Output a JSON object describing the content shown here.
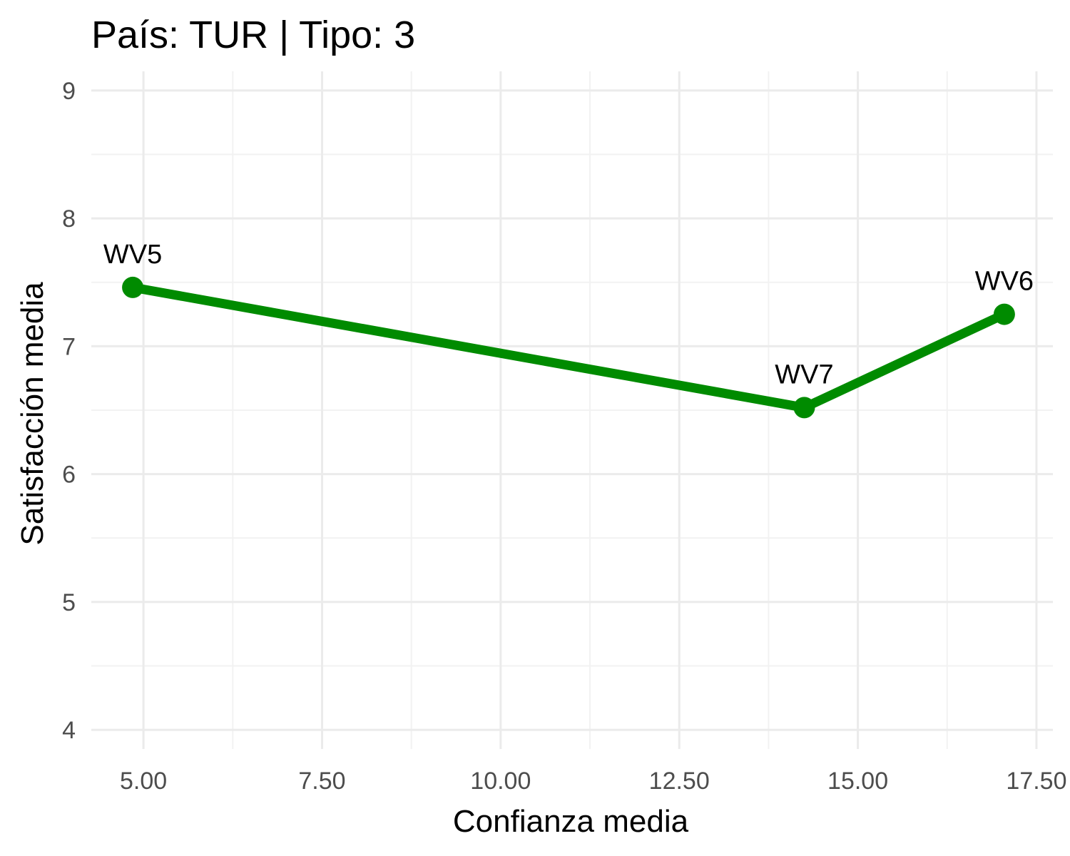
{
  "chart_data": {
    "type": "line",
    "title": "País: TUR | Tipo: 3",
    "xlabel": "Confianza media",
    "ylabel": "Satisfacción media",
    "xlim": [
      4.27,
      17.73
    ],
    "ylim": [
      3.85,
      9.15
    ],
    "x_ticks": [
      5,
      7.5,
      10,
      12.5,
      15,
      17.5
    ],
    "x_tick_labels": [
      "5.00",
      "7.50",
      "10.00",
      "12.50",
      "15.00",
      "17.50"
    ],
    "y_ticks": [
      4,
      5,
      6,
      7,
      8,
      9
    ],
    "y_tick_labels": [
      "4",
      "5",
      "6",
      "7",
      "8",
      "9"
    ],
    "grid": true,
    "series": [
      {
        "color": "#008b00",
        "points": [
          {
            "x": 4.85,
            "y": 7.46,
            "label": "WV5"
          },
          {
            "x": 14.25,
            "y": 6.52,
            "label": "WV7"
          },
          {
            "x": 17.05,
            "y": 7.25,
            "label": "WV6"
          }
        ]
      }
    ]
  },
  "colors": {
    "line": "#008b00",
    "grid_major": "#ebebeb",
    "grid_minor": "#f2f2f2",
    "tick_text": "#4d4d4d"
  }
}
